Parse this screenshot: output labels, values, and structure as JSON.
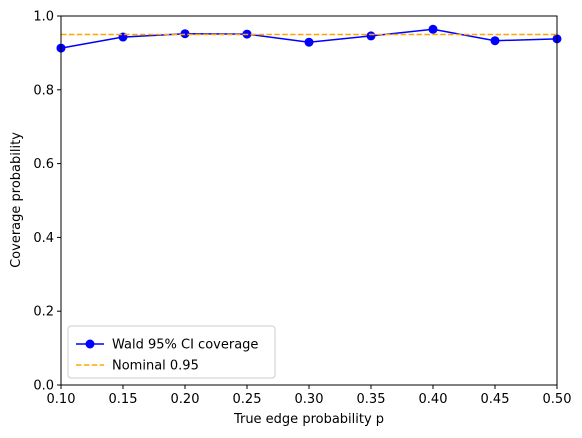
{
  "chart_data": {
    "type": "line",
    "title": "",
    "xlabel": "True edge probability p",
    "ylabel": "Coverage probability",
    "xlim": [
      0.1,
      0.5
    ],
    "ylim": [
      0.0,
      1.0
    ],
    "xticks": [
      "0.10",
      "0.15",
      "0.20",
      "0.25",
      "0.30",
      "0.35",
      "0.40",
      "0.45",
      "0.50"
    ],
    "yticks": [
      "0.0",
      "0.2",
      "0.4",
      "0.6",
      "0.8",
      "1.0"
    ],
    "grid": false,
    "legend_position": "lower-left",
    "x": [
      0.1,
      0.15,
      0.2,
      0.25,
      0.3,
      0.35,
      0.4,
      0.45,
      0.5
    ],
    "series": [
      {
        "name": "Wald 95% CI coverage",
        "values": [
          0.913,
          0.943,
          0.952,
          0.951,
          0.929,
          0.946,
          0.964,
          0.933,
          0.938
        ],
        "color": "#0000ff",
        "style": "solid",
        "marker": "circle"
      },
      {
        "name": "Nominal 0.95",
        "values": [
          0.95,
          0.95,
          0.95,
          0.95,
          0.95,
          0.95,
          0.95,
          0.95,
          0.95
        ],
        "color": "#ffa500",
        "style": "dashed",
        "marker": "none"
      }
    ]
  }
}
